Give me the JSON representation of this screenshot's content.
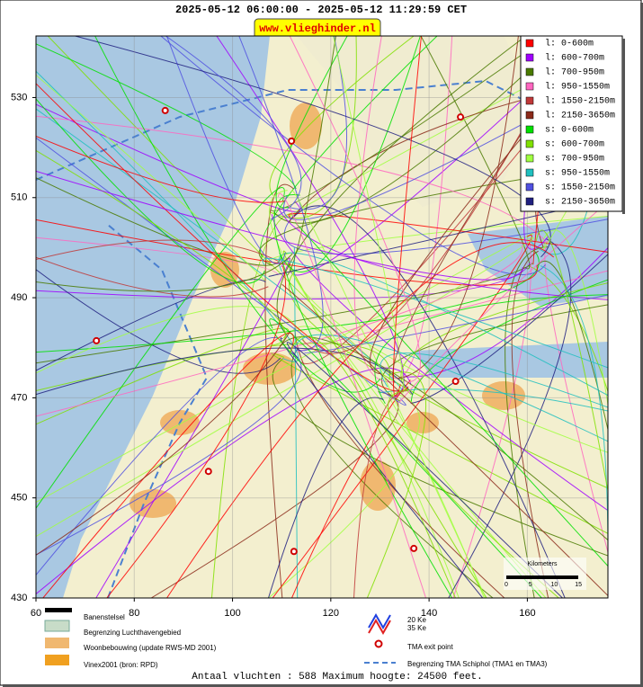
{
  "header": {
    "title": "2025-05-12 06:00:00 - 2025-05-12 11:29:59 CET",
    "site": "www.vlieghinder.nl"
  },
  "map": {
    "xlim": [
      60,
      176.4
    ],
    "ylim": [
      430,
      542.3
    ],
    "xticks": [
      60,
      80,
      100,
      120,
      140,
      160
    ],
    "yticks": [
      430,
      450,
      470,
      490,
      510,
      530
    ],
    "grid": true,
    "legend": [
      {
        "name": "l: 0-600m",
        "color": "#ff0000"
      },
      {
        "name": "l: 600-700m",
        "color": "#a000ff"
      },
      {
        "name": "l: 700-950m",
        "color": "#4a7a00"
      },
      {
        "name": "l: 950-1550m",
        "color": "#ff66c0"
      },
      {
        "name": "l: 1550-2150m",
        "color": "#c03838"
      },
      {
        "name": "l: 2150-3650m",
        "color": "#8b2a1a"
      },
      {
        "name": "s: 0-600m",
        "color": "#00e000"
      },
      {
        "name": "s: 600-700m",
        "color": "#80e000"
      },
      {
        "name": "s: 700-950m",
        "color": "#a0ff40"
      },
      {
        "name": "s: 950-1550m",
        "color": "#20c0c0"
      },
      {
        "name": "s: 1550-2150m",
        "color": "#5050e0"
      },
      {
        "name": "s: 2150-3650m",
        "color": "#202080"
      }
    ],
    "exit_points": {
      "x": [
        86.3,
        112,
        146.4,
        72.3,
        145.4,
        95.1,
        112.5,
        136.9
      ],
      "y": [
        527.4,
        521.3,
        526.1,
        481.4,
        473.3,
        455.3,
        439.3,
        439.9
      ],
      "color": "#d00000"
    },
    "scale_bar": {
      "title": "Kilometers",
      "labels": [
        "0",
        "5",
        "10",
        "15"
      ]
    }
  },
  "key": {
    "runways": "Banenstelsel",
    "airport_boundary": "Begrenzing Luchthavengebied",
    "housing": "Woonbebouwing (update RWS-MD 2001)",
    "vinex": "Vinex2001 (bron: RPD)",
    "ke20": "20 Ke",
    "ke35": "35 Ke",
    "tma_exit": "TMA exit point",
    "tma_boundary": "Begrenzing TMA Schiphol  (TMA1 en TMA3)"
  },
  "footer": "Antaal vluchten : 588 Maximum hoogte: 24500 feet."
}
